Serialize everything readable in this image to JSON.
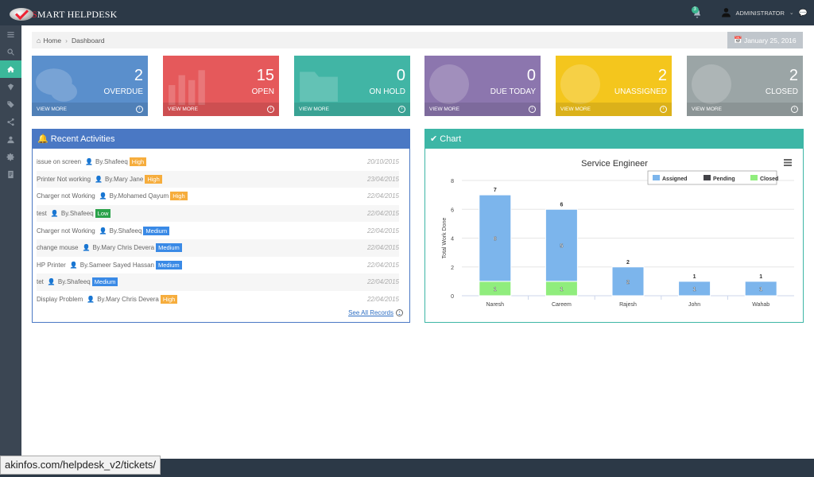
{
  "app": {
    "logo_first": "S",
    "logo_rest": "MART HELPDESK"
  },
  "topbar": {
    "notification_count": "3",
    "user_name": "ADMINISTRATOR"
  },
  "sidebar": {
    "items": [
      {
        "icon": "menu-icon"
      },
      {
        "icon": "search-icon"
      },
      {
        "icon": "home-icon",
        "active": true
      },
      {
        "icon": "ticket-icon"
      },
      {
        "icon": "tag-icon"
      },
      {
        "icon": "share-icon"
      },
      {
        "icon": "user-icon"
      },
      {
        "icon": "gear-icon"
      },
      {
        "icon": "report-icon"
      }
    ]
  },
  "breadcrumb": {
    "home": "Home",
    "current": "Dashboard",
    "date": "January 25, 2016"
  },
  "tiles": [
    {
      "count": "2",
      "label": "OVERDUE",
      "link": "VIEW MORE",
      "color": "#5a8fcc"
    },
    {
      "count": "15",
      "label": "OPEN",
      "link": "VIEW MORE",
      "color": "#e5595b"
    },
    {
      "count": "0",
      "label": "ON HOLD",
      "link": "VIEW MORE",
      "color": "#41b5a5"
    },
    {
      "count": "0",
      "label": "DUE TODAY",
      "link": "VIEW MORE",
      "color": "#8c76ae"
    },
    {
      "count": "2",
      "label": "UNASSIGNED",
      "link": "VIEW MORE",
      "color": "#f4c61d"
    },
    {
      "count": "2",
      "label": "CLOSED",
      "link": "VIEW MORE",
      "color": "#9ba5a6"
    }
  ],
  "recent": {
    "title": "Recent Activities",
    "see_all": "See All Records",
    "activities": [
      {
        "subject": "issue on screen",
        "by": "By.Shafeeq",
        "priority": "High",
        "date": "20/10/2015"
      },
      {
        "subject": "Printer Not working",
        "by": "By.Mary Jane",
        "priority": "High",
        "date": "23/04/2015"
      },
      {
        "subject": "Charger not Working",
        "by": "By.Mohamed Qayum",
        "priority": "High",
        "date": "22/04/2015"
      },
      {
        "subject": "test",
        "by": "By.Shafeeq",
        "priority": "Low",
        "date": "22/04/2015"
      },
      {
        "subject": "Charger not Working",
        "by": "By.Shafeeq",
        "priority": "Medium",
        "date": "22/04/2015"
      },
      {
        "subject": "change mouse",
        "by": "By.Mary Chris Devera",
        "priority": "Medium",
        "date": "22/04/2015"
      },
      {
        "subject": "HP Printer",
        "by": "By.Sameer Sayed Hassan",
        "priority": "Medium",
        "date": "22/04/2015"
      },
      {
        "subject": "tet",
        "by": "By.Shafeeq",
        "priority": "Medium",
        "date": "22/04/2015"
      },
      {
        "subject": "Display Problem",
        "by": "By.Mary Chris Devera",
        "priority": "High",
        "date": "22/04/2015"
      }
    ]
  },
  "chart_panel": {
    "title": "Chart"
  },
  "chart_data": {
    "type": "bar",
    "stacked": true,
    "title": "Service Engineer",
    "xlabel": "",
    "ylabel": "Total Work Done",
    "ylim": [
      0,
      8
    ],
    "yticks": [
      0,
      2,
      4,
      6,
      8
    ],
    "grid": true,
    "legend_position": "top-right",
    "categories": [
      "Naresh",
      "Careem",
      "Rajesh",
      "John",
      "Wahab"
    ],
    "series": [
      {
        "name": "Assigned",
        "color": "#7cb5ec",
        "values": [
          6,
          5,
          2,
          1,
          1
        ]
      },
      {
        "name": "Pending",
        "color": "#434348",
        "values": [
          0,
          0,
          0,
          0,
          0
        ]
      },
      {
        "name": "Closed",
        "color": "#90ed7d",
        "values": [
          1,
          1,
          0,
          0,
          0
        ]
      }
    ],
    "totals": [
      7,
      6,
      2,
      1,
      1
    ]
  },
  "status": {
    "url": "akinfos.com/helpdesk_v2/tickets/"
  }
}
